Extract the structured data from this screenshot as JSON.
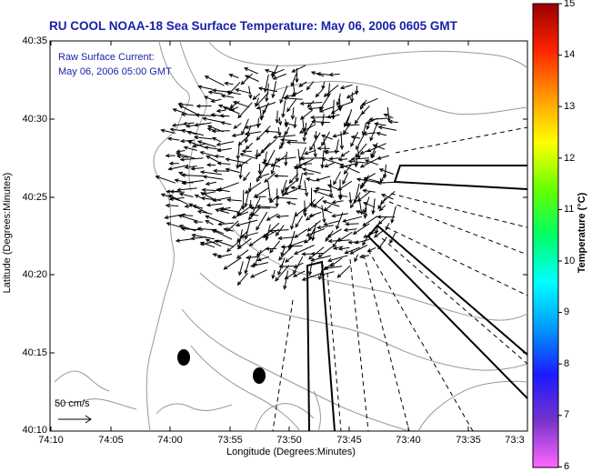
{
  "title": "RU COOL  NOAA-18  Sea Surface Temperature:  May 06, 2006 0605 GMT",
  "legend": {
    "line1": "Raw Surface Current:",
    "line2": "May 06, 2006 05:00 GMT"
  },
  "axes": {
    "x_label": "Longitude (Degrees:Minutes)",
    "y_label": "Latitude (Degrees:Minutes)",
    "x_ticks": [
      "74:10",
      "74:05",
      "74:00",
      "73:55",
      "73:50",
      "73:45",
      "73:40",
      "73:35",
      "73:3"
    ],
    "y_ticks": [
      "40:35",
      "40:30",
      "40:25",
      "40:20",
      "40:15",
      "40:10"
    ]
  },
  "colorbar": {
    "label": "Temperature (°C)",
    "ticks": [
      "15",
      "14",
      "13",
      "12",
      "11",
      "10",
      "9",
      "8",
      "7",
      "6"
    ],
    "min": 6,
    "max": 15,
    "colors": [
      "#ff66ff",
      "#7733cc",
      "#1a1aff",
      "#0099ff",
      "#00ffff",
      "#00ff66",
      "#66ff00",
      "#ffff00",
      "#ff9900",
      "#ff2200",
      "#990000"
    ]
  },
  "scale": {
    "label": "50 cm/s"
  }
}
